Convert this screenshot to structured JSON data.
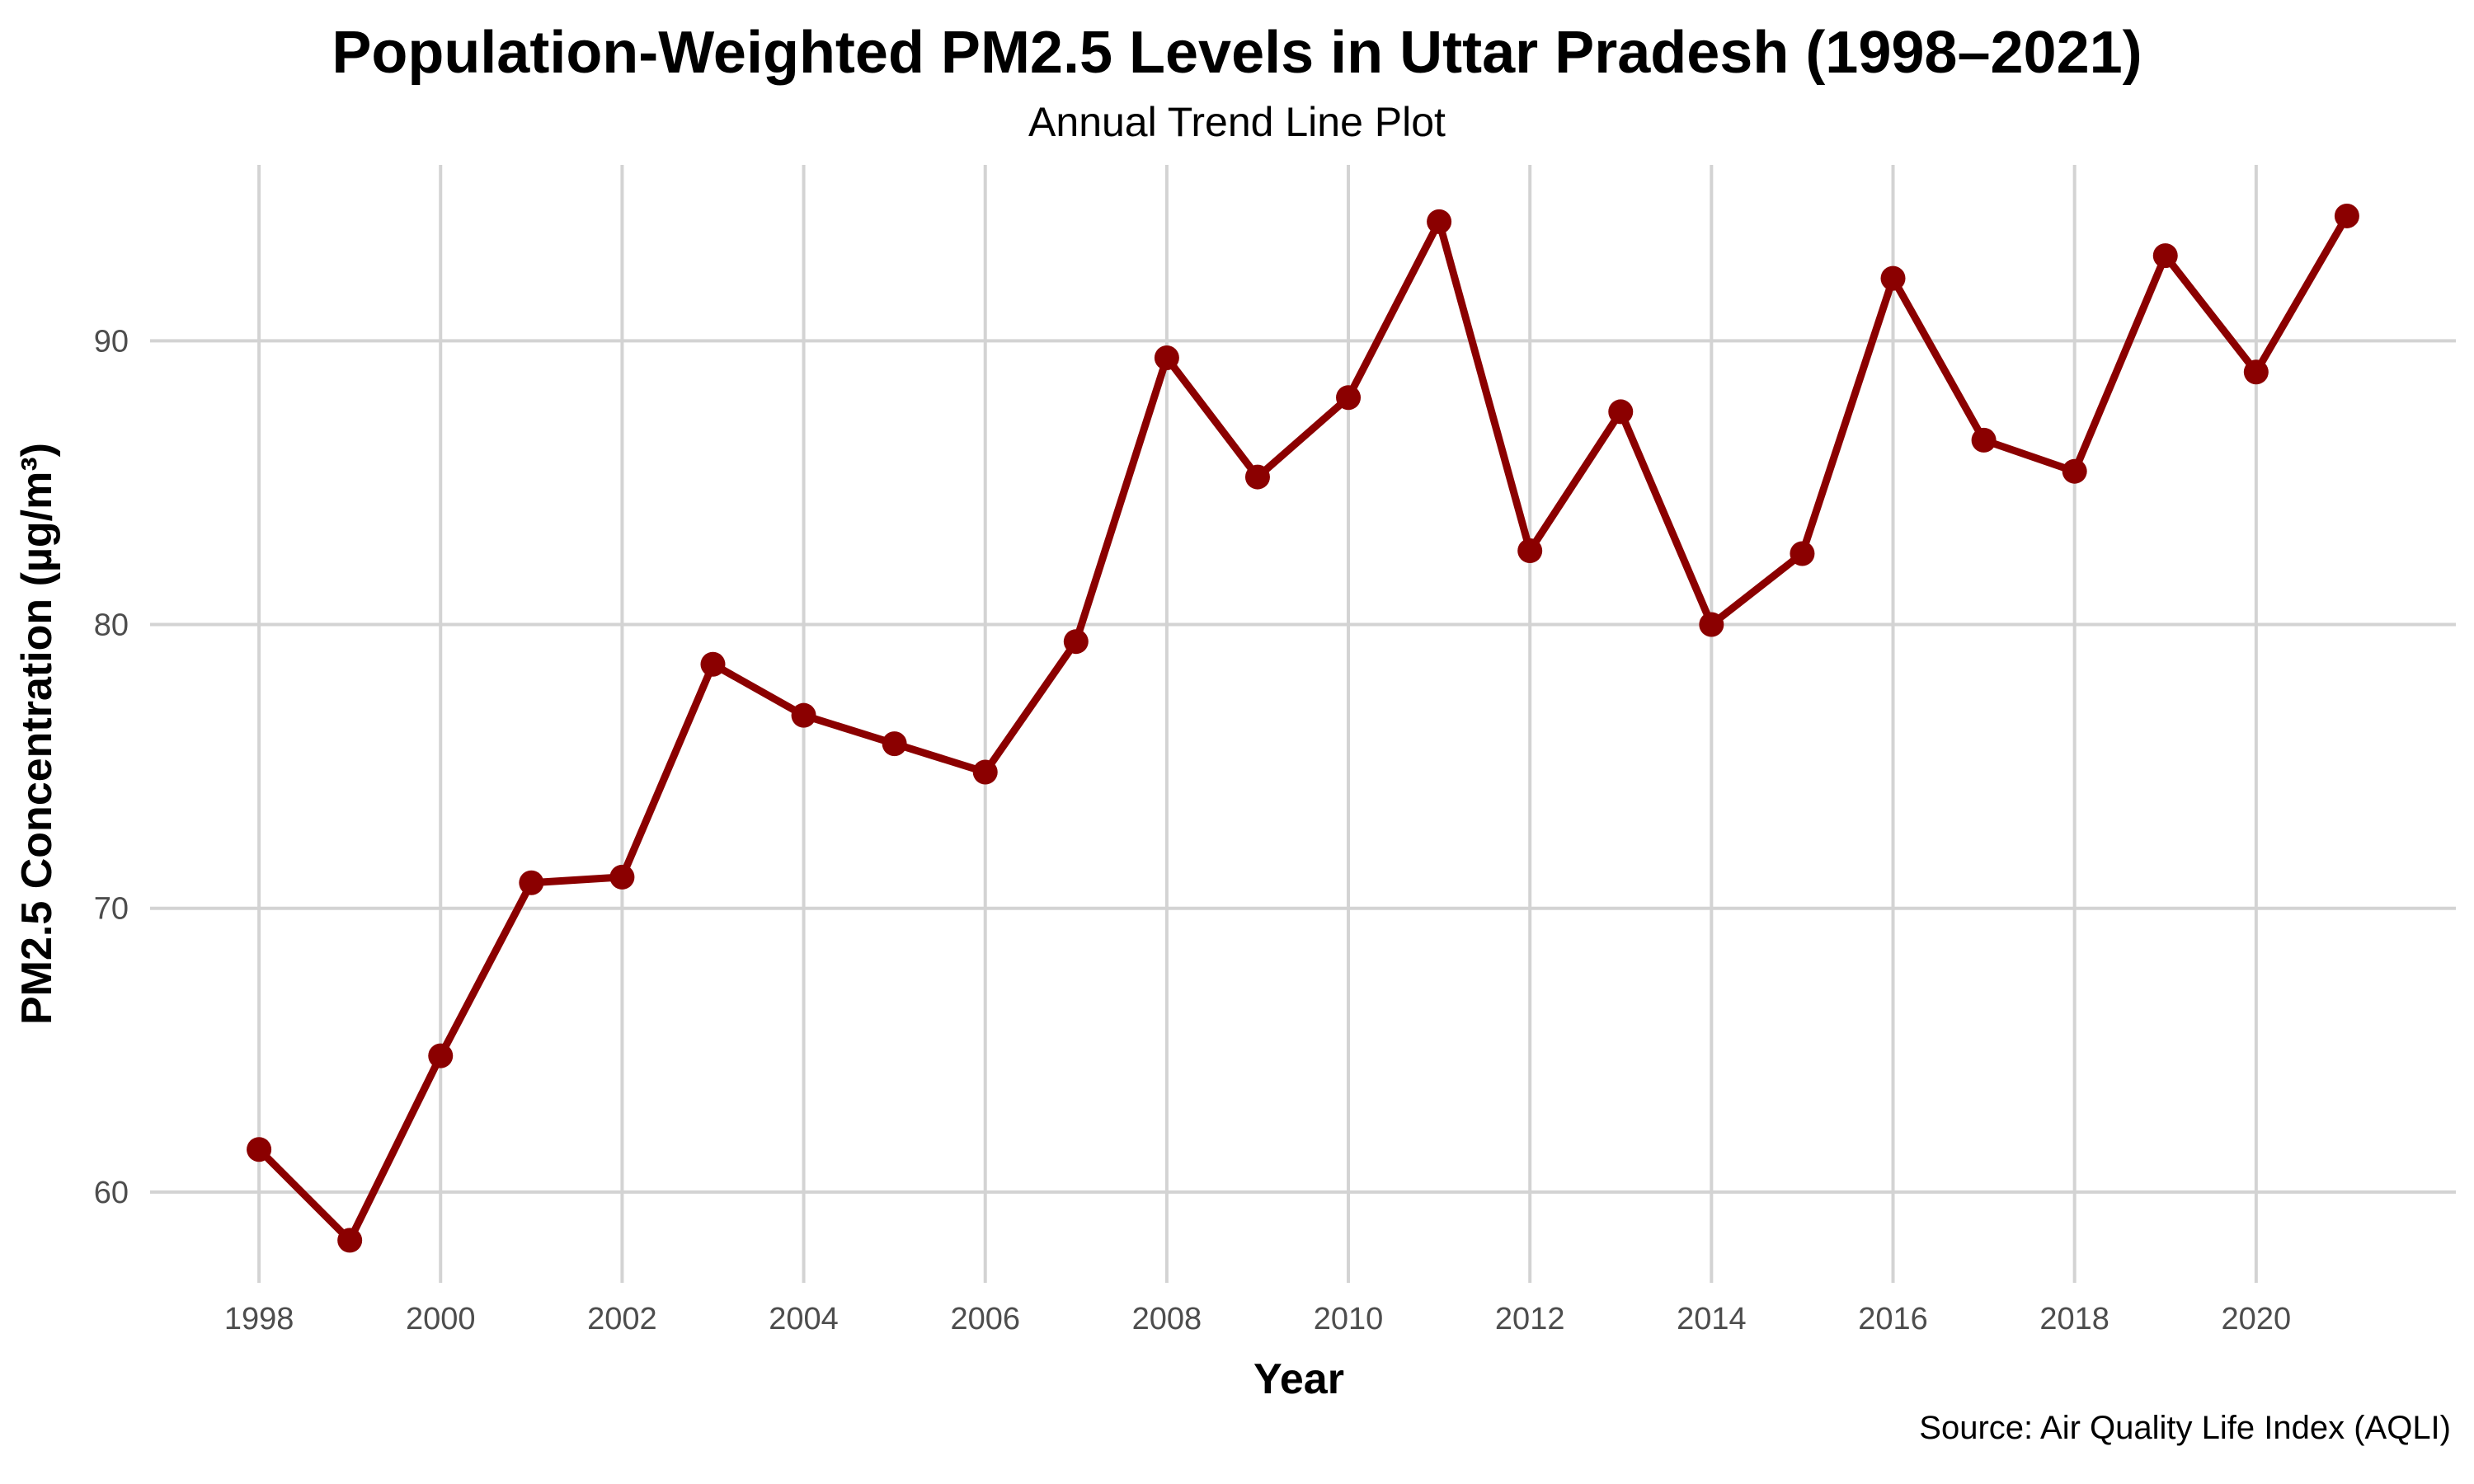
{
  "chart_data": {
    "type": "line",
    "title": "Population-Weighted PM2.5 Levels in Uttar Pradesh (1998–2021)",
    "subtitle": "Annual Trend Line Plot",
    "xlabel": "Year",
    "ylabel": "PM2.5 Concentration (µg/m³)",
    "caption": "Source: Air Quality Life Index (AQLI)",
    "xlim": [
      1996.8,
      2022.2
    ],
    "ylim": [
      56.8,
      96.2
    ],
    "x_ticks": [
      1998,
      2000,
      2002,
      2004,
      2006,
      2008,
      2010,
      2012,
      2014,
      2016,
      2018,
      2020
    ],
    "y_ticks": [
      60,
      70,
      80,
      90
    ],
    "grid": true,
    "legend": "none",
    "line_color": "#8b0000",
    "grid_color": "#d3d3d3",
    "series": [
      {
        "x": [
          1998,
          1999,
          2000,
          2001,
          2002,
          2003,
          2004,
          2005,
          2006,
          2007,
          2008,
          2009,
          2010,
          2011,
          2012,
          2013,
          2014,
          2015,
          2016,
          2017,
          2018,
          2019,
          2020,
          2021
        ],
        "values": [
          61.5,
          58.3,
          64.8,
          70.9,
          71.1,
          78.6,
          76.8,
          75.8,
          74.8,
          79.4,
          89.4,
          85.2,
          88.0,
          94.2,
          82.6,
          87.5,
          80.0,
          82.5,
          92.2,
          86.5,
          85.4,
          93.0,
          88.9,
          94.4
        ]
      }
    ]
  }
}
